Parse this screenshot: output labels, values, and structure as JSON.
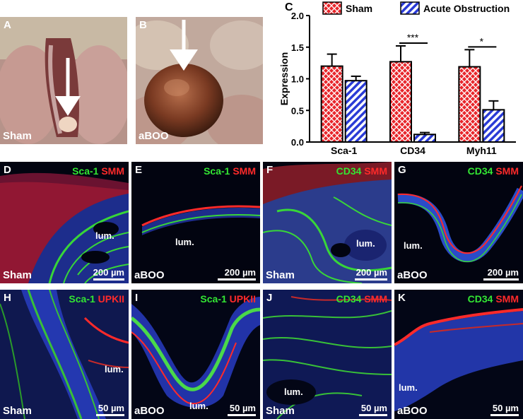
{
  "panels": {
    "A": {
      "letter": "A",
      "condition": "Sham"
    },
    "B": {
      "letter": "B",
      "condition": "aBOO"
    },
    "C": {
      "letter": "C"
    },
    "D": {
      "letter": "D",
      "stain_green": "Sca-1",
      "stain_red": "SMM",
      "lumen": "lum.",
      "condition": "Sham",
      "scale": "200 µm"
    },
    "E": {
      "letter": "E",
      "stain_green": "Sca-1",
      "stain_red": "SMM",
      "lumen": "lum.",
      "condition": "aBOO",
      "scale": "200 µm"
    },
    "F": {
      "letter": "F",
      "stain_green": "CD34",
      "stain_red": "SMM",
      "lumen": "lum.",
      "condition": "Sham",
      "scale": "200 µm"
    },
    "G": {
      "letter": "G",
      "stain_green": "CD34",
      "stain_red": "SMM",
      "lumen": "lum.",
      "condition": "aBOO",
      "scale": "200 µm"
    },
    "H": {
      "letter": "H",
      "stain_green": "Sca-1",
      "stain_red": "UPKII",
      "lumen": "lum.",
      "condition": "Sham",
      "scale": "50 µm"
    },
    "I": {
      "letter": "I",
      "stain_green": "Sca-1",
      "stain_red": "UPKII",
      "lumen": "lum.",
      "condition": "aBOO",
      "scale": "50 µm"
    },
    "J": {
      "letter": "J",
      "stain_green": "CD34",
      "stain_red": "SMM",
      "lumen": "lum.",
      "condition": "Sham",
      "scale": "50 µm"
    },
    "K": {
      "letter": "K",
      "stain_green": "CD34",
      "stain_red": "SMM",
      "lumen": "lum.",
      "condition": "aBOO",
      "scale": "50 µm"
    }
  },
  "colors": {
    "sham_fill": "#e8262b",
    "obstruction_fill": "#2a3bd6",
    "stain_green": "#33e633",
    "stain_red": "#ff2a2a",
    "nuclei_blue": "#1f3fd0"
  },
  "chart_data": {
    "type": "bar",
    "categories": [
      "Sca-1",
      "CD34",
      "Myh11"
    ],
    "series": [
      {
        "name": "Sham",
        "values": [
          1.2,
          1.27,
          1.19
        ],
        "errors": [
          0.19,
          0.25,
          0.27
        ]
      },
      {
        "name": "Acute Obstruction",
        "values": [
          0.97,
          0.12,
          0.51
        ],
        "errors": [
          0.07,
          0.03,
          0.14
        ]
      }
    ],
    "ylabel": "Expression",
    "ylim": [
      0,
      2.0
    ],
    "yticks": [
      "0.0",
      "0.5",
      "1.0",
      "1.5",
      "2.0"
    ],
    "significance": [
      {
        "category": "CD34",
        "label": "***"
      },
      {
        "category": "Myh11",
        "label": "*"
      }
    ],
    "legend_position": "top",
    "grid": false
  }
}
